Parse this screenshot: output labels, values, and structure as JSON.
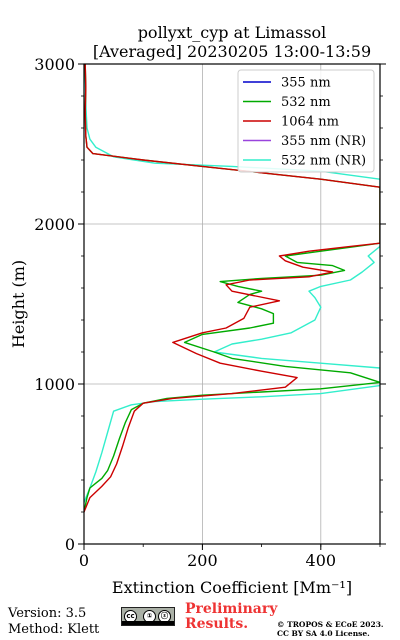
{
  "chart_data": {
    "type": "line",
    "title": "pollyxt_cyp at Limassol",
    "subtitle": "[Averaged] 20230205 13:00-13:59",
    "xlabel": "Extinction Coefficient [Mm⁻¹]",
    "ylabel": "Height (m)",
    "xlim": [
      0,
      500
    ],
    "ylim": [
      0,
      3000
    ],
    "xticks": [
      "0",
      "200",
      "400"
    ],
    "yticks": [
      "0",
      "1000",
      "2000",
      "3000"
    ],
    "grid": true,
    "legend_position": "top-right",
    "series": [
      {
        "name": "355 nm",
        "color": "#0000cc",
        "points": []
      },
      {
        "name": "532 nm",
        "color": "#00aa00",
        "points": [
          [
            0,
            200
          ],
          [
            5,
            290
          ],
          [
            10,
            350
          ],
          [
            20,
            380
          ],
          [
            30,
            410
          ],
          [
            40,
            460
          ],
          [
            50,
            550
          ],
          [
            60,
            660
          ],
          [
            70,
            760
          ],
          [
            80,
            840
          ],
          [
            100,
            880
          ],
          [
            140,
            910
          ],
          [
            200,
            930
          ],
          [
            300,
            950
          ],
          [
            400,
            970
          ],
          [
            500,
            1010
          ],
          [
            450,
            1070
          ],
          [
            340,
            1110
          ],
          [
            250,
            1160
          ],
          [
            220,
            1200
          ],
          [
            170,
            1260
          ],
          [
            200,
            1310
          ],
          [
            280,
            1350
          ],
          [
            320,
            1380
          ],
          [
            320,
            1440
          ],
          [
            300,
            1470
          ],
          [
            260,
            1510
          ],
          [
            280,
            1560
          ],
          [
            300,
            1580
          ],
          [
            260,
            1610
          ],
          [
            230,
            1640
          ],
          [
            300,
            1660
          ],
          [
            400,
            1680
          ],
          [
            440,
            1710
          ],
          [
            420,
            1740
          ],
          [
            360,
            1760
          ],
          [
            340,
            1800
          ],
          [
            400,
            1830
          ],
          [
            460,
            1860
          ],
          [
            500,
            1880
          ],
          [
            500,
            2230
          ],
          [
            400,
            2280
          ],
          [
            300,
            2320
          ],
          [
            200,
            2360
          ],
          [
            100,
            2400
          ],
          [
            15,
            2440
          ],
          [
            5,
            2480
          ],
          [
            3,
            2550
          ],
          [
            2,
            2700
          ],
          [
            3,
            2850
          ],
          [
            2,
            3000
          ]
        ]
      },
      {
        "name": "1064 nm",
        "color": "#cc0000",
        "points": [
          [
            0,
            200
          ],
          [
            10,
            290
          ],
          [
            30,
            360
          ],
          [
            45,
            420
          ],
          [
            55,
            500
          ],
          [
            65,
            610
          ],
          [
            75,
            730
          ],
          [
            85,
            830
          ],
          [
            100,
            880
          ],
          [
            150,
            910
          ],
          [
            250,
            940
          ],
          [
            340,
            980
          ],
          [
            360,
            1040
          ],
          [
            300,
            1080
          ],
          [
            230,
            1130
          ],
          [
            190,
            1190
          ],
          [
            150,
            1260
          ],
          [
            200,
            1320
          ],
          [
            240,
            1350
          ],
          [
            270,
            1410
          ],
          [
            280,
            1480
          ],
          [
            330,
            1520
          ],
          [
            290,
            1550
          ],
          [
            250,
            1580
          ],
          [
            240,
            1620
          ],
          [
            280,
            1650
          ],
          [
            380,
            1670
          ],
          [
            420,
            1700
          ],
          [
            370,
            1730
          ],
          [
            340,
            1770
          ],
          [
            330,
            1800
          ],
          [
            380,
            1830
          ],
          [
            450,
            1860
          ],
          [
            500,
            1880
          ],
          [
            500,
            2230
          ],
          [
            400,
            2280
          ],
          [
            300,
            2320
          ],
          [
            200,
            2360
          ],
          [
            100,
            2400
          ],
          [
            15,
            2440
          ],
          [
            5,
            2480
          ],
          [
            3,
            2550
          ],
          [
            2,
            2700
          ],
          [
            3,
            2850
          ],
          [
            2,
            3000
          ]
        ]
      },
      {
        "name": "355 nm (NR)",
        "color": "#9944dd",
        "points": []
      },
      {
        "name": "532 nm (NR)",
        "color": "#33eecc",
        "points": [
          [
            0,
            260
          ],
          [
            10,
            350
          ],
          [
            20,
            450
          ],
          [
            30,
            570
          ],
          [
            40,
            700
          ],
          [
            50,
            830
          ],
          [
            80,
            870
          ],
          [
            120,
            890
          ],
          [
            200,
            905
          ],
          [
            300,
            920
          ],
          [
            400,
            940
          ],
          [
            500,
            990
          ],
          [
            500,
            1100
          ],
          [
            400,
            1130
          ],
          [
            300,
            1160
          ],
          [
            220,
            1200
          ],
          [
            250,
            1250
          ],
          [
            300,
            1280
          ],
          [
            350,
            1320
          ],
          [
            390,
            1400
          ],
          [
            400,
            1480
          ],
          [
            390,
            1540
          ],
          [
            380,
            1580
          ],
          [
            400,
            1610
          ],
          [
            450,
            1650
          ],
          [
            470,
            1700
          ],
          [
            490,
            1760
          ],
          [
            480,
            1800
          ],
          [
            490,
            1830
          ],
          [
            500,
            1860
          ],
          [
            500,
            2280
          ],
          [
            400,
            2330
          ],
          [
            250,
            2360
          ],
          [
            120,
            2380
          ],
          [
            50,
            2420
          ],
          [
            20,
            2480
          ],
          [
            10,
            2530
          ],
          [
            5,
            2600
          ],
          [
            3,
            2750
          ],
          [
            2,
            2900
          ],
          [
            0,
            3000
          ]
        ]
      }
    ]
  },
  "footer": {
    "version": "Version: 3.5",
    "method": "Method: Klett",
    "preliminary": [
      "Preliminary",
      "Results."
    ],
    "copyright": [
      "© TROPOS & ECoE 2023.",
      "CC BY SA 4.0 License."
    ],
    "badge_glyphs": [
      "cc",
      "①",
      "ⓢ"
    ]
  }
}
